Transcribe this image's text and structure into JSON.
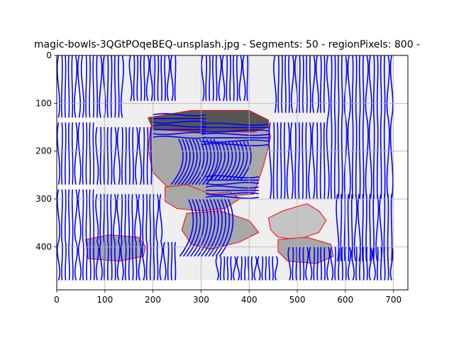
{
  "chart_data": {
    "type": "image",
    "title": "magic-bowls-3QGtPOqeBEQ-unsplash.jpg - Segments: 50 - regionPixels: 800 - ",
    "xlabel": "",
    "ylabel": "",
    "xlim": [
      0,
      730
    ],
    "ylim": [
      490,
      0
    ],
    "xticks": [
      0,
      100,
      200,
      300,
      400,
      500,
      600,
      700
    ],
    "yticks": [
      0,
      100,
      200,
      300,
      400
    ],
    "grid": true,
    "colors": {
      "contour": "#0000ff",
      "boundary": "#ff0000",
      "region_light": "#efefef",
      "region_mid": "#a8a8a8",
      "region_dark": "#555555",
      "region_soft": "#c4c4c4",
      "grid": "#b0b0b0"
    },
    "regions": [
      {
        "shade": "region_light",
        "points": [
          [
            80,
            0
          ],
          [
            700,
            0
          ],
          [
            700,
            470
          ],
          [
            80,
            470
          ]
        ]
      },
      {
        "shade": "region_mid",
        "points": [
          [
            195,
            150
          ],
          [
            270,
            140
          ],
          [
            440,
            150
          ],
          [
            445,
            170
          ],
          [
            430,
            230
          ],
          [
            410,
            290
          ],
          [
            290,
            300
          ],
          [
            240,
            285
          ],
          [
            200,
            245
          ],
          [
            190,
            195
          ]
        ]
      },
      {
        "shade": "region_dark",
        "points": [
          [
            190,
            130
          ],
          [
            280,
            115
          ],
          [
            400,
            115
          ],
          [
            440,
            135
          ],
          [
            440,
            150
          ],
          [
            410,
            160
          ],
          [
            300,
            160
          ],
          [
            200,
            155
          ]
        ]
      },
      {
        "shade": "region_mid",
        "points": [
          [
            225,
            275
          ],
          [
            270,
            270
          ],
          [
            320,
            290
          ],
          [
            360,
            285
          ],
          [
            380,
            300
          ],
          [
            350,
            320
          ],
          [
            300,
            325
          ],
          [
            250,
            320
          ],
          [
            225,
            305
          ]
        ]
      },
      {
        "shade": "region_mid",
        "points": [
          [
            60,
            385
          ],
          [
            110,
            375
          ],
          [
            170,
            380
          ],
          [
            185,
            400
          ],
          [
            180,
            420
          ],
          [
            130,
            430
          ],
          [
            65,
            425
          ]
        ]
      },
      {
        "shade": "region_mid",
        "points": [
          [
            270,
            330
          ],
          [
            340,
            325
          ],
          [
            400,
            345
          ],
          [
            420,
            370
          ],
          [
            380,
            390
          ],
          [
            320,
            405
          ],
          [
            280,
            395
          ],
          [
            260,
            365
          ]
        ]
      },
      {
        "shade": "region_soft",
        "points": [
          [
            440,
            340
          ],
          [
            470,
            325
          ],
          [
            520,
            310
          ],
          [
            545,
            325
          ],
          [
            560,
            345
          ],
          [
            545,
            370
          ],
          [
            500,
            385
          ],
          [
            460,
            380
          ],
          [
            445,
            365
          ]
        ]
      },
      {
        "shade": "region_mid",
        "points": [
          [
            460,
            385
          ],
          [
            520,
            380
          ],
          [
            570,
            395
          ],
          [
            575,
            420
          ],
          [
            540,
            435
          ],
          [
            480,
            430
          ],
          [
            460,
            410
          ]
        ]
      }
    ],
    "contour_groups": [
      {
        "x_range": [
          0,
          50
        ],
        "y_range": [
          0,
          130
        ],
        "orientation": "vertical"
      },
      {
        "x_range": [
          50,
          140
        ],
        "y_range": [
          0,
          130
        ],
        "orientation": "vertical"
      },
      {
        "x_range": [
          150,
          250
        ],
        "y_range": [
          0,
          95
        ],
        "orientation": "vertical"
      },
      {
        "x_range": [
          300,
          400
        ],
        "y_range": [
          0,
          95
        ],
        "orientation": "vertical"
      },
      {
        "x_range": [
          450,
          560
        ],
        "y_range": [
          0,
          120
        ],
        "orientation": "vertical"
      },
      {
        "x_range": [
          560,
          700
        ],
        "y_range": [
          0,
          130
        ],
        "orientation": "vertical"
      },
      {
        "x_range": [
          0,
          80
        ],
        "y_range": [
          140,
          270
        ],
        "orientation": "vertical"
      },
      {
        "x_range": [
          80,
          200
        ],
        "y_range": [
          150,
          270
        ],
        "orientation": "vertical"
      },
      {
        "x_range": [
          440,
          560
        ],
        "y_range": [
          140,
          300
        ],
        "orientation": "vertical"
      },
      {
        "x_range": [
          560,
          700
        ],
        "y_range": [
          130,
          300
        ],
        "orientation": "vertical"
      },
      {
        "x_range": [
          0,
          80
        ],
        "y_range": [
          280,
          390
        ],
        "orientation": "vertical"
      },
      {
        "x_range": [
          80,
          220
        ],
        "y_range": [
          290,
          390
        ],
        "orientation": "vertical"
      },
      {
        "x_range": [
          580,
          700
        ],
        "y_range": [
          290,
          430
        ],
        "orientation": "vertical"
      },
      {
        "x_range": [
          0,
          250
        ],
        "y_range": [
          390,
          470
        ],
        "orientation": "vertical"
      },
      {
        "x_range": [
          330,
          460
        ],
        "y_range": [
          420,
          470
        ],
        "orientation": "vertical"
      },
      {
        "x_range": [
          480,
          700
        ],
        "y_range": [
          400,
          470
        ],
        "orientation": "vertical"
      },
      {
        "x_range": [
          200,
          310
        ],
        "y_range": [
          120,
          175
        ],
        "orientation": "horizontal"
      },
      {
        "x_range": [
          300,
          440
        ],
        "y_range": [
          140,
          190
        ],
        "orientation": "horizontal"
      },
      {
        "x_range": [
          250,
          330
        ],
        "y_range": [
          175,
          270
        ],
        "orientation": "diagonal"
      },
      {
        "x_range": [
          330,
          400
        ],
        "y_range": [
          180,
          260
        ],
        "orientation": "diagonal"
      },
      {
        "x_range": [
          310,
          420
        ],
        "y_range": [
          250,
          300
        ],
        "orientation": "horizontal"
      },
      {
        "x_range": [
          270,
          360
        ],
        "y_range": [
          300,
          420
        ],
        "orientation": "diagonal"
      }
    ]
  }
}
